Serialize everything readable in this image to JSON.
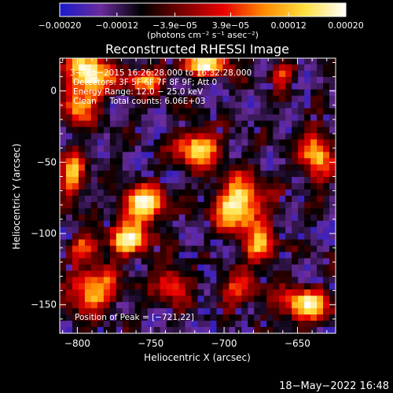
{
  "chart_data": {
    "type": "heatmap",
    "title": "Reconstructed RHESSI Image",
    "xlabel": "Heliocentric X (arcsec)",
    "ylabel": "Heliocentric Y (arcsec)",
    "xlim": [
      -812,
      -624
    ],
    "ylim": [
      -170,
      23
    ],
    "x_ticks": [
      -800,
      -750,
      -700,
      -650
    ],
    "x_tick_labels": [
      "−800",
      "−750",
      "−700",
      "−650"
    ],
    "y_ticks": [
      0,
      -50,
      -100,
      -150
    ],
    "y_tick_labels": [
      "0",
      "−50",
      "−100",
      "−150"
    ],
    "colorbar": {
      "range": [
        -0.0002,
        0.0002
      ],
      "ticks": [
        -0.0002,
        -0.00012,
        -3.9e-05,
        3.9e-05,
        0.00012,
        0.0002
      ],
      "tick_labels": [
        "−0.00020",
        "−0.00012",
        "−3.9e−05",
        "3.9e−05",
        "0.00012",
        "0.00020"
      ],
      "unit_text": "(photons cm⁻² s⁻¹ asec⁻²)",
      "colors": [
        "#1a1acd",
        "#6a2c9e",
        "#000000",
        "#7a0000",
        "#e80000",
        "#ff8a00",
        "#ffe040",
        "#ffffff"
      ]
    },
    "annotations": [
      "3−Feb−2015 16:26:28.000 to 16:32:28.000",
      "Detectors: 3F 5F 6F 7F 8F 9F; Att 0",
      "Energy Range: 12.0 − 25.0 keV",
      "Clean     Total counts: 6.06E+03"
    ],
    "peak_label": "Position of Peak = [−721,22]",
    "sources": [
      {
        "x": -792,
        "y": 12,
        "sx": 10,
        "sy": 13,
        "amp": 1.0
      },
      {
        "x": -755,
        "y": 8,
        "sx": 11,
        "sy": 6,
        "amp": 0.7
      },
      {
        "x": -712,
        "y": 18,
        "sx": 12,
        "sy": 5,
        "amp": 0.9
      },
      {
        "x": -803,
        "y": -60,
        "sx": 6,
        "sy": 12,
        "amp": 0.7
      },
      {
        "x": -800,
        "y": -12,
        "sx": 7,
        "sy": 8,
        "amp": 0.6
      },
      {
        "x": -718,
        "y": -40,
        "sx": 10,
        "sy": 9,
        "amp": 0.9
      },
      {
        "x": -690,
        "y": -80,
        "sx": 12,
        "sy": 13,
        "amp": 1.0
      },
      {
        "x": -675,
        "y": -110,
        "sx": 8,
        "sy": 8,
        "amp": 0.7
      },
      {
        "x": -755,
        "y": -80,
        "sx": 10,
        "sy": 9,
        "amp": 1.0
      },
      {
        "x": -765,
        "y": -105,
        "sx": 10,
        "sy": 8,
        "amp": 0.9
      },
      {
        "x": -735,
        "y": -135,
        "sx": 8,
        "sy": 9,
        "amp": 0.6
      },
      {
        "x": -690,
        "y": -140,
        "sx": 10,
        "sy": 8,
        "amp": 0.5
      },
      {
        "x": -637,
        "y": -45,
        "sx": 7,
        "sy": 13,
        "amp": 0.8
      },
      {
        "x": -645,
        "y": -150,
        "sx": 12,
        "sy": 8,
        "amp": 0.9
      },
      {
        "x": -790,
        "y": -140,
        "sx": 12,
        "sy": 10,
        "amp": 0.8
      },
      {
        "x": -660,
        "y": 12,
        "sx": 6,
        "sy": 6,
        "amp": 0.5
      },
      {
        "x": -795,
        "y": -110,
        "sx": 7,
        "sy": 6,
        "amp": 0.6
      }
    ]
  },
  "footer": {
    "timestamp": "18−May−2022 16:48"
  }
}
